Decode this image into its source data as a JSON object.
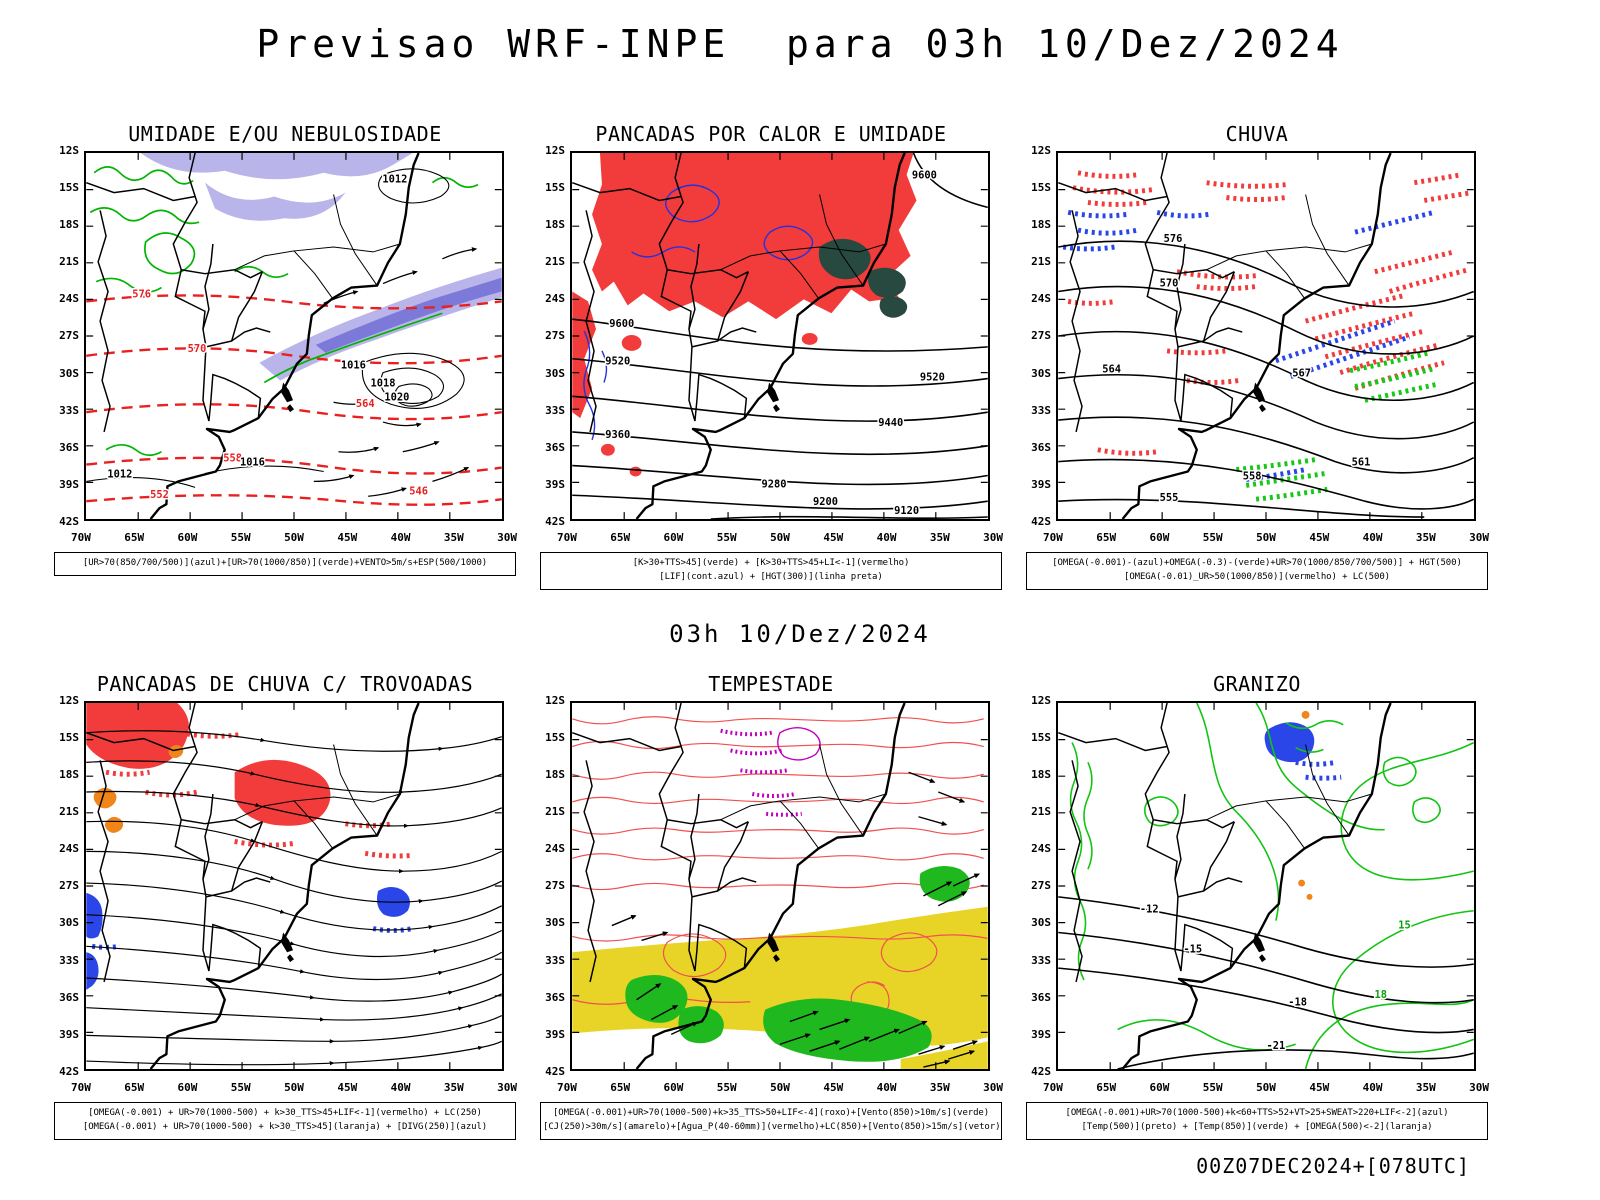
{
  "page": {
    "title": "Previsao WRF-INPE  para 03h 10/Dez/2024",
    "subtitle": "03h 10/Dez/2024",
    "footer": "00Z07DEC2024+[078UTC]"
  },
  "axes": {
    "y_ticks": [
      "12S",
      "15S",
      "18S",
      "21S",
      "24S",
      "27S",
      "30S",
      "33S",
      "36S",
      "39S",
      "42S"
    ],
    "x_ticks": [
      "70W",
      "65W",
      "60W",
      "55W",
      "50W",
      "45W",
      "40W",
      "35W",
      "30W"
    ]
  },
  "colors": {
    "humidity_shade": "#b9b5ea",
    "humidity_shade_deep": "#7d79d8",
    "green_contour": "#00b400",
    "red_fill": "#f23b3b",
    "dark_green_fill": "#27493f",
    "blue_contour": "#2332e0",
    "yellow_fill": "#e8d426",
    "purple": "#c000c0",
    "orange": "#f08519"
  },
  "panels": [
    {
      "title": "UMIDADE E/OU NEBULOSIDADE",
      "caption_lines": [
        "[UR>70(850/700/500)](azul)+[UR>70(1000/850)](verde)+VENTO>5m/s+ESP(500/1000)"
      ],
      "contour_labels": {
        "red": [
          "576",
          "570",
          "564",
          "558",
          "552",
          "546"
        ],
        "black": [
          "1012",
          "1016",
          "1018",
          "1020",
          "1012",
          "1016"
        ]
      }
    },
    {
      "title": "PANCADAS POR CALOR E UMIDADE",
      "caption_lines": [
        "[K>30+TTS>45](verde) + [K>30+TTS>45+LI<-1](vermelho)",
        "[LIF](cont.azul) + [HGT(300)](linha preta)"
      ],
      "contour_labels": {
        "black": [
          "9600",
          "9600",
          "9520",
          "9520",
          "9440",
          "9360",
          "9280",
          "9200",
          "9120"
        ]
      }
    },
    {
      "title": "CHUVA",
      "caption_lines": [
        "[OMEGA(-0.001)-(azul)+OMEGA(-0.3)-(verde)+UR>70(1000/850/700/500)] + HGT(500)",
        "[OMEGA(-0.01)_UR>50(1000/850)](vermelho) + LC(500)"
      ],
      "contour_labels": {
        "black": [
          "576",
          "570",
          "567",
          "564",
          "561",
          "558",
          "555"
        ]
      }
    },
    {
      "title": "PANCADAS DE CHUVA C/ TROVOADAS",
      "caption_lines": [
        "[OMEGA(-0.001) + UR>70(1000-500) + k>30_TTS>45+LIF<-1](vermelho) + LC(250)",
        "[OMEGA(-0.001) + UR>70(1000-500) + k>30_TTS>45](laranja) + [DIVG(250)](azul)"
      ],
      "contour_labels": {}
    },
    {
      "title": "TEMPESTADE",
      "caption_lines": [
        "[OMEGA(-0.001)+UR>70(1000-500)+k>35_TTS>50+LIF<-4](roxo)+[Vento(850)>10m/s](verde)",
        "[CJ(250)>30m/s](amarelo)+[Agua_P(40-60mm)](vermelho)+LC(850)+[Vento(850)>15m/s](vetor)"
      ],
      "contour_labels": {}
    },
    {
      "title": "GRANIZO",
      "caption_lines": [
        "[OMEGA(-0.001)+UR>70(1000-500)+k<60+TTS>52+VT>25+SWEAT>220+LIF<-2](azul)",
        "[Temp(500)](preto) + [Temp(850)](verde) + [OMEGA(500)<-2](laranja)"
      ],
      "contour_labels": {
        "black": [
          "-12",
          "-15",
          "-18",
          "-21"
        ],
        "green": [
          "15",
          "18"
        ]
      }
    }
  ]
}
